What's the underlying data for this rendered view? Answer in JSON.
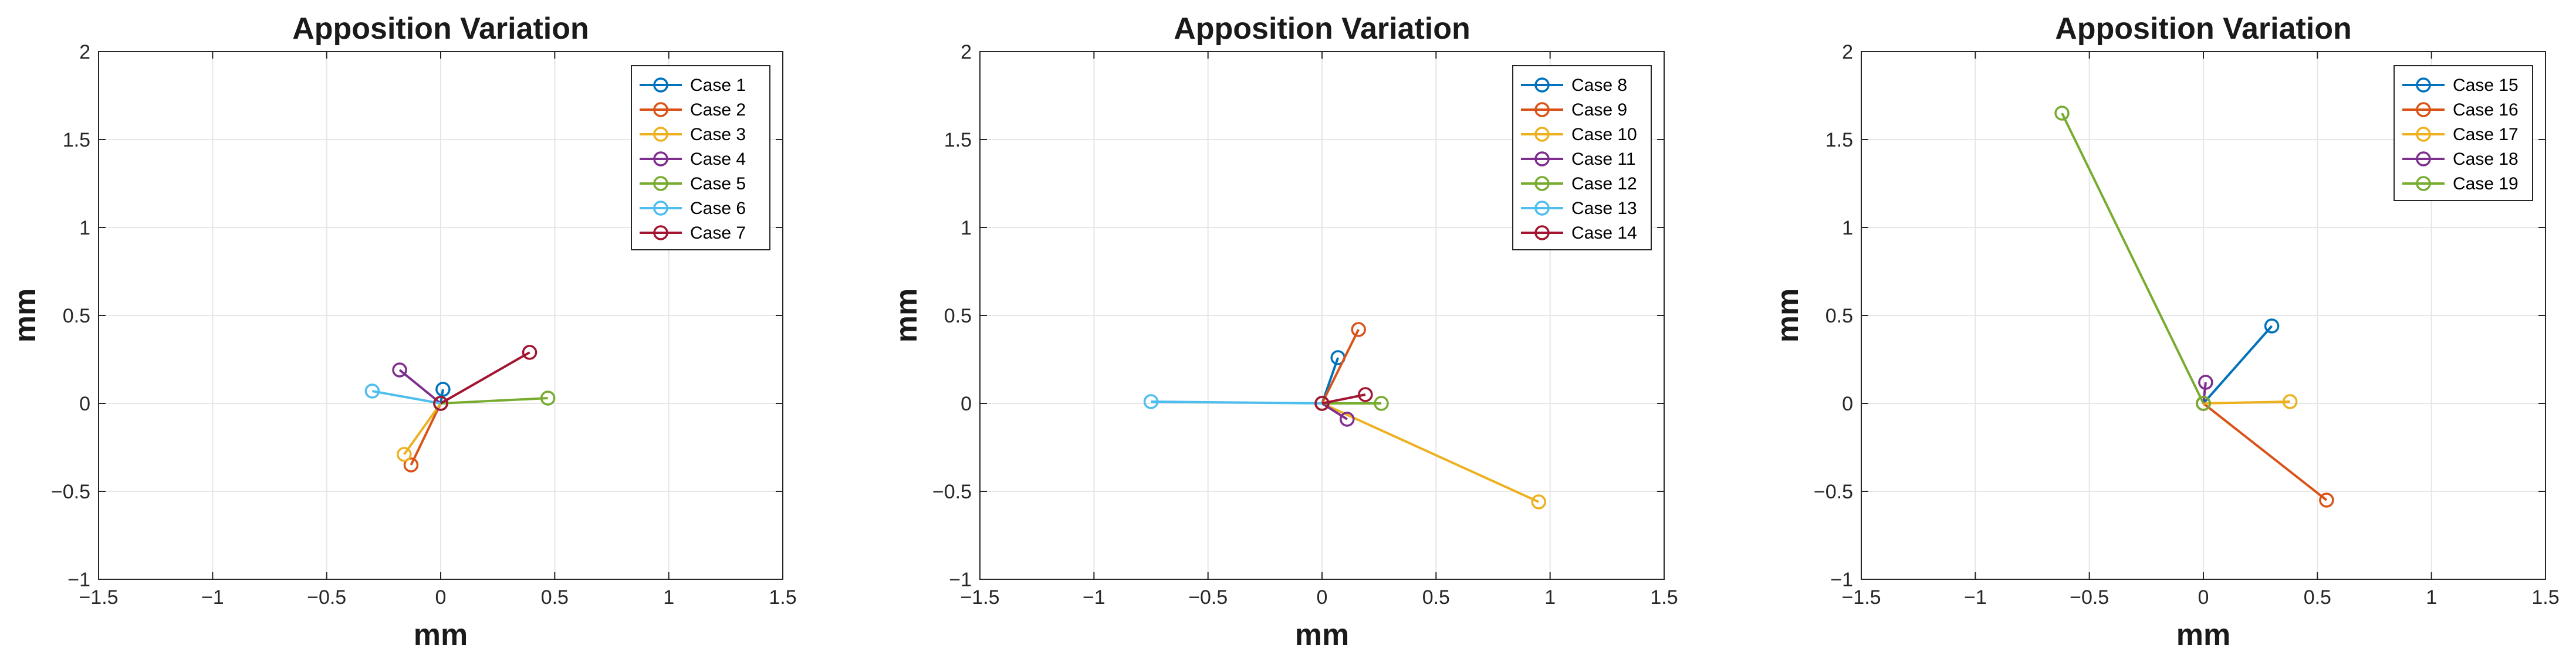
{
  "chart_data": [
    {
      "type": "line",
      "title": "Apposition Variation",
      "xlabel": "mm",
      "ylabel": "mm",
      "xlim": [
        -1.5,
        1.5
      ],
      "ylim": [
        -1,
        2
      ],
      "xticks": [
        -1.5,
        -1,
        -0.5,
        0,
        0.5,
        1,
        1.5
      ],
      "yticks": [
        -1,
        -0.5,
        0,
        0.5,
        1,
        1.5,
        2
      ],
      "xtick_labels": [
        "−1.5",
        "−1",
        "−0.5",
        "0",
        "0.5",
        "1",
        "1.5"
      ],
      "ytick_labels": [
        "−1",
        "−0.5",
        "0",
        "0.5",
        "1",
        "1.5",
        "2"
      ],
      "grid": true,
      "legend_position": "top-right",
      "series": [
        {
          "name": "Case 1",
          "color": "#0072BD",
          "x": [
            0,
            0.01
          ],
          "y": [
            0,
            0.08
          ]
        },
        {
          "name": "Case 2",
          "color": "#D95319",
          "x": [
            0,
            -0.13
          ],
          "y": [
            0,
            -0.35
          ]
        },
        {
          "name": "Case 3",
          "color": "#EDB120",
          "x": [
            0,
            -0.16
          ],
          "y": [
            0,
            -0.29
          ]
        },
        {
          "name": "Case 4",
          "color": "#7E2F8E",
          "x": [
            0,
            -0.18
          ],
          "y": [
            0,
            0.19
          ]
        },
        {
          "name": "Case 5",
          "color": "#77AC30",
          "x": [
            0,
            0.47
          ],
          "y": [
            0,
            0.03
          ]
        },
        {
          "name": "Case 6",
          "color": "#4DBEEE",
          "x": [
            0,
            -0.3
          ],
          "y": [
            0,
            0.07
          ]
        },
        {
          "name": "Case 7",
          "color": "#A2142F",
          "x": [
            0,
            0.39
          ],
          "y": [
            0,
            0.29
          ]
        }
      ]
    },
    {
      "type": "line",
      "title": "Apposition Variation",
      "xlabel": "mm",
      "ylabel": "mm",
      "xlim": [
        -1.5,
        1.5
      ],
      "ylim": [
        -1,
        2
      ],
      "xticks": [
        -1.5,
        -1,
        -0.5,
        0,
        0.5,
        1,
        1.5
      ],
      "yticks": [
        -1,
        -0.5,
        0,
        0.5,
        1,
        1.5,
        2
      ],
      "xtick_labels": [
        "−1.5",
        "−1",
        "−0.5",
        "0",
        "0.5",
        "1",
        "1.5"
      ],
      "ytick_labels": [
        "−1",
        "−0.5",
        "0",
        "0.5",
        "1",
        "1.5",
        "2"
      ],
      "grid": true,
      "legend_position": "top-right",
      "series": [
        {
          "name": "Case 8",
          "color": "#0072BD",
          "x": [
            0,
            0.07
          ],
          "y": [
            0,
            0.26
          ]
        },
        {
          "name": "Case 9",
          "color": "#D95319",
          "x": [
            0,
            0.16
          ],
          "y": [
            0,
            0.42
          ]
        },
        {
          "name": "Case 10",
          "color": "#EDB120",
          "x": [
            0,
            0.95
          ],
          "y": [
            0,
            -0.56
          ]
        },
        {
          "name": "Case 11",
          "color": "#7E2F8E",
          "x": [
            0,
            0.11
          ],
          "y": [
            0,
            -0.09
          ]
        },
        {
          "name": "Case 12",
          "color": "#77AC30",
          "x": [
            0,
            0.26
          ],
          "y": [
            0,
            0.0
          ]
        },
        {
          "name": "Case 13",
          "color": "#4DBEEE",
          "x": [
            0,
            -0.75
          ],
          "y": [
            0,
            0.01
          ]
        },
        {
          "name": "Case 14",
          "color": "#A2142F",
          "x": [
            0,
            0.19
          ],
          "y": [
            0,
            0.05
          ]
        }
      ]
    },
    {
      "type": "line",
      "title": "Apposition Variation",
      "xlabel": "mm",
      "ylabel": "mm",
      "xlim": [
        -1.5,
        1.5
      ],
      "ylim": [
        -1,
        2
      ],
      "xticks": [
        -1.5,
        -1,
        -0.5,
        0,
        0.5,
        1,
        1.5
      ],
      "yticks": [
        -1,
        -0.5,
        0,
        0.5,
        1,
        1.5,
        2
      ],
      "xtick_labels": [
        "−1.5",
        "−1",
        "−0.5",
        "0",
        "0.5",
        "1",
        "1.5"
      ],
      "ytick_labels": [
        "−1",
        "−0.5",
        "0",
        "0.5",
        "1",
        "1.5",
        "2"
      ],
      "grid": true,
      "legend_position": "top-right",
      "series": [
        {
          "name": "Case 15",
          "color": "#0072BD",
          "x": [
            0,
            0.3
          ],
          "y": [
            0,
            0.44
          ]
        },
        {
          "name": "Case 16",
          "color": "#D95319",
          "x": [
            0,
            0.54
          ],
          "y": [
            0,
            -0.55
          ]
        },
        {
          "name": "Case 17",
          "color": "#EDB120",
          "x": [
            0,
            0.38
          ],
          "y": [
            0,
            0.01
          ]
        },
        {
          "name": "Case 18",
          "color": "#7E2F8E",
          "x": [
            0,
            0.01
          ],
          "y": [
            0,
            0.12
          ]
        },
        {
          "name": "Case 19",
          "color": "#77AC30",
          "x": [
            0,
            -0.62
          ],
          "y": [
            0,
            1.65
          ]
        }
      ]
    }
  ]
}
